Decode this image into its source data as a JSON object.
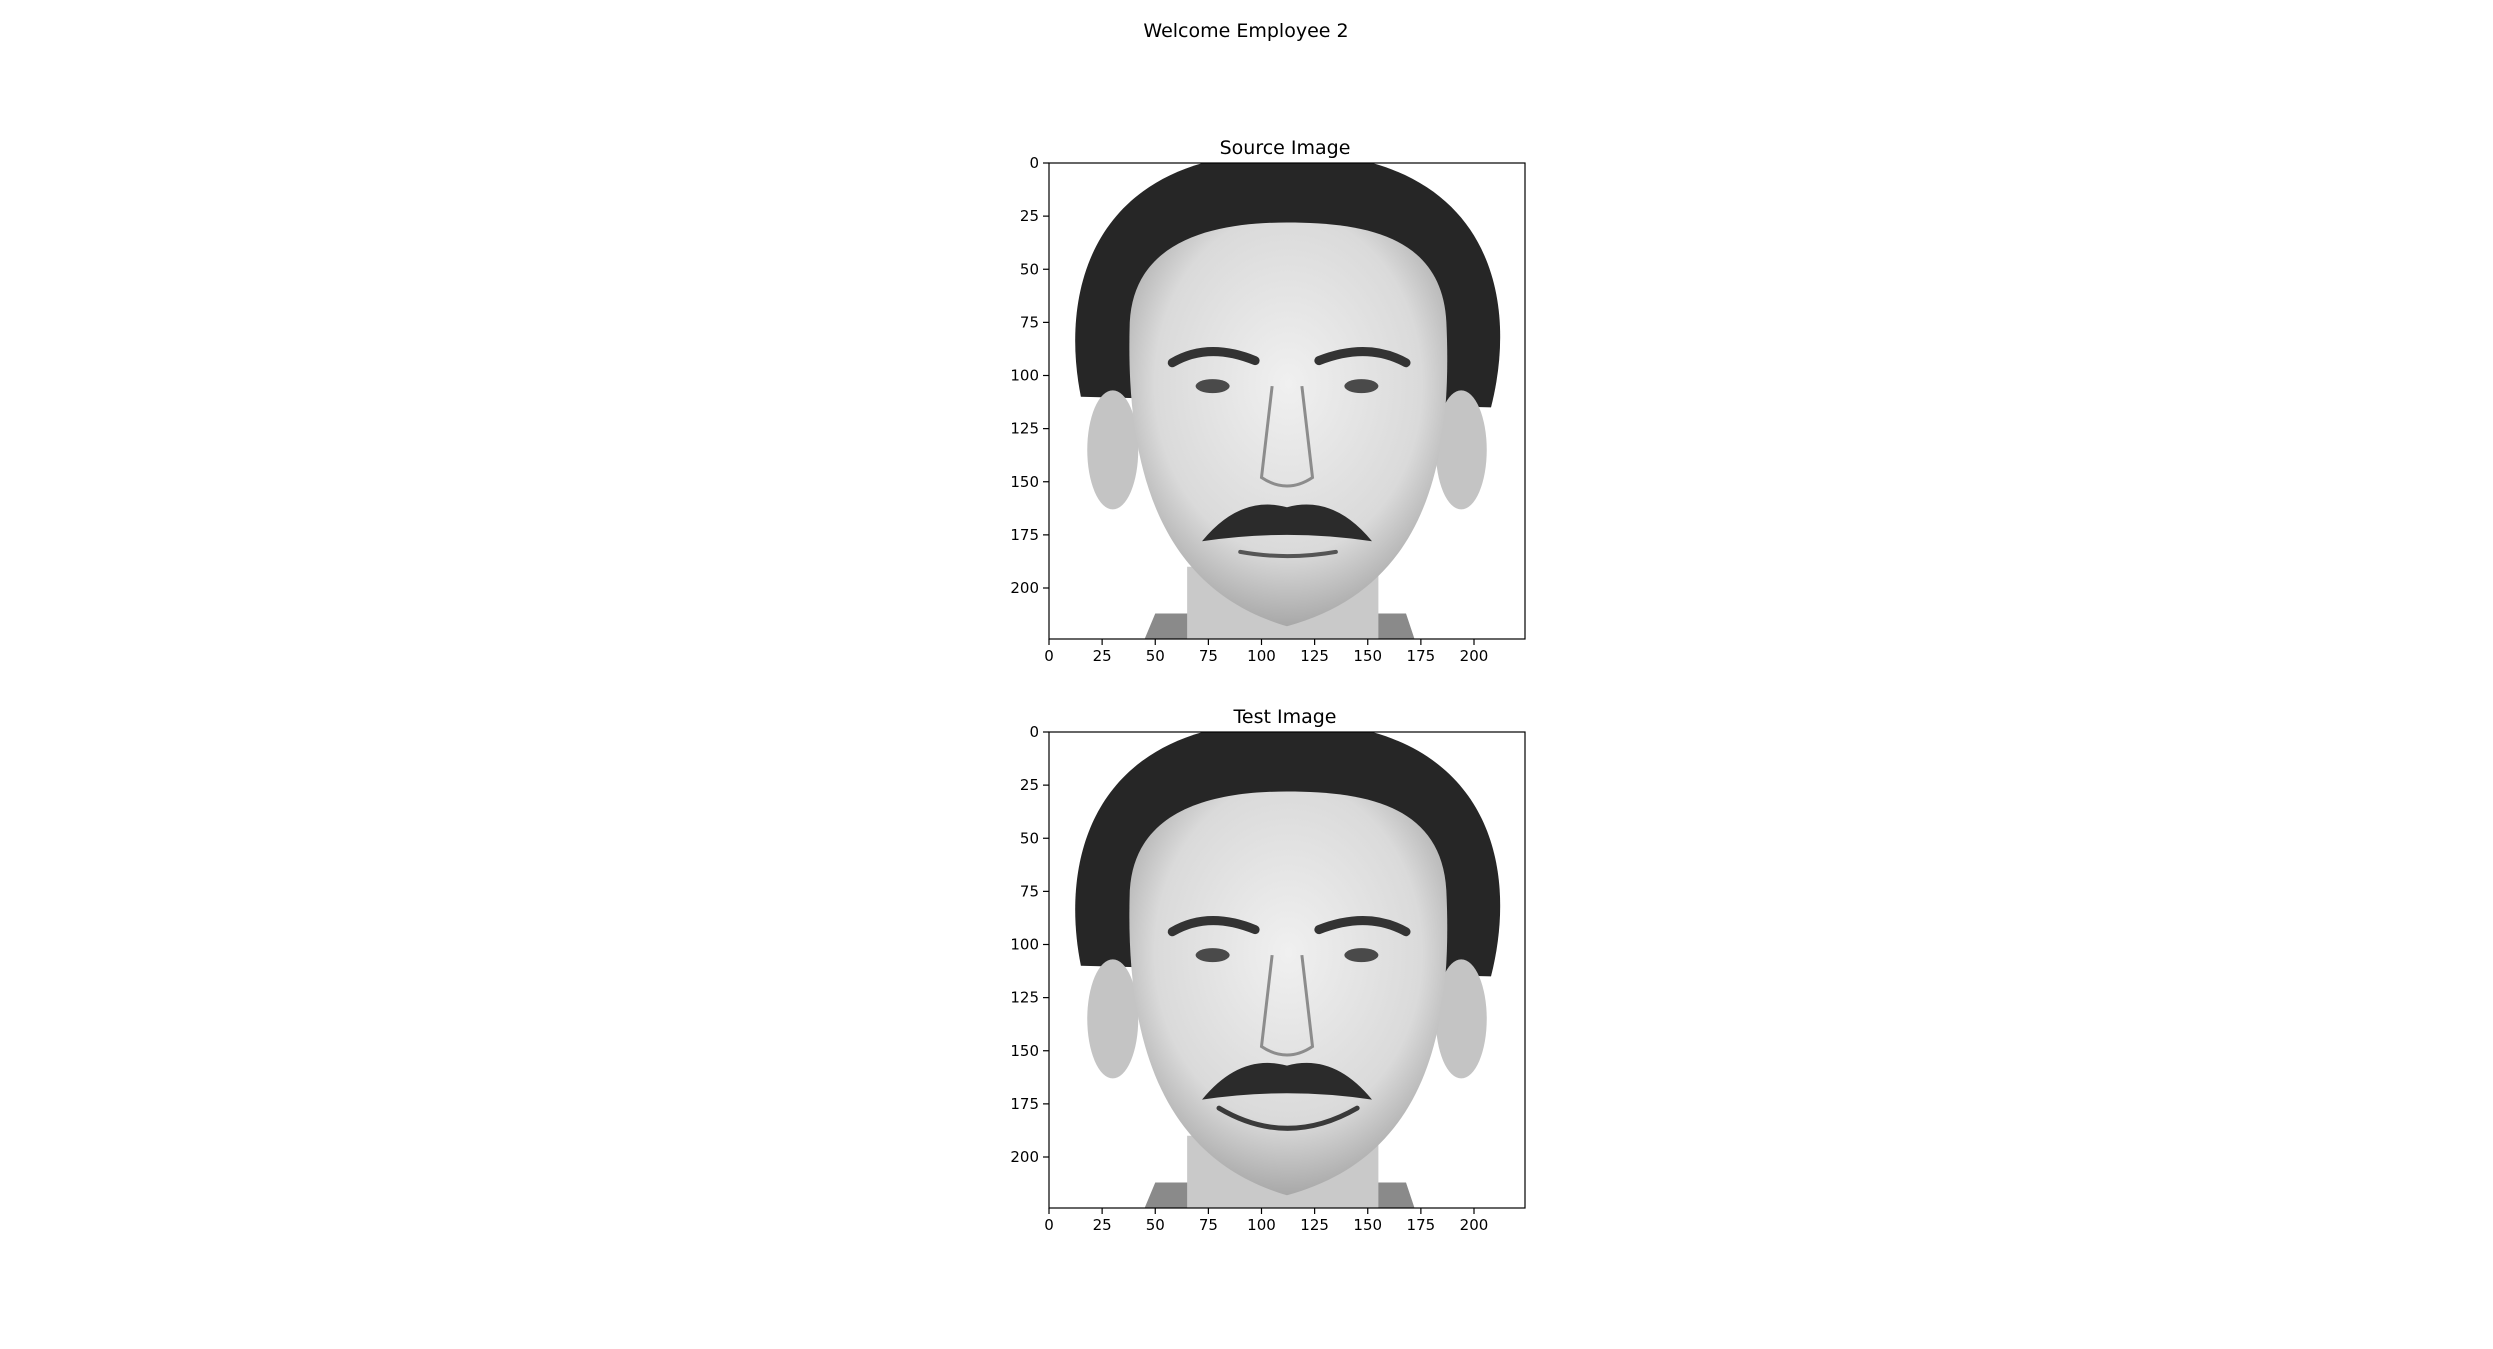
{
  "figure": {
    "title": "Welcome Employee 2"
  },
  "chart_data": [
    {
      "type": "image",
      "title": "Source Image",
      "colormap": "gray",
      "xlim": [
        0,
        224
      ],
      "ylim": [
        224,
        0
      ],
      "xticks": [
        0,
        25,
        50,
        75,
        100,
        125,
        150,
        175,
        200
      ],
      "yticks": [
        0,
        25,
        50,
        75,
        100,
        125,
        150,
        175,
        200
      ],
      "grid": false
    },
    {
      "type": "image",
      "title": "Test Image",
      "colormap": "gray",
      "xlim": [
        0,
        224
      ],
      "ylim": [
        224,
        0
      ],
      "xticks": [
        0,
        25,
        50,
        75,
        100,
        125,
        150,
        175,
        200
      ],
      "yticks": [
        0,
        25,
        50,
        75,
        100,
        125,
        150,
        175,
        200
      ],
      "grid": false
    }
  ],
  "colors": {
    "background": "#ffffff",
    "axis": "#000000",
    "skin": "#dadada",
    "hair": "#262626",
    "mustache": "#2b2b2b"
  }
}
